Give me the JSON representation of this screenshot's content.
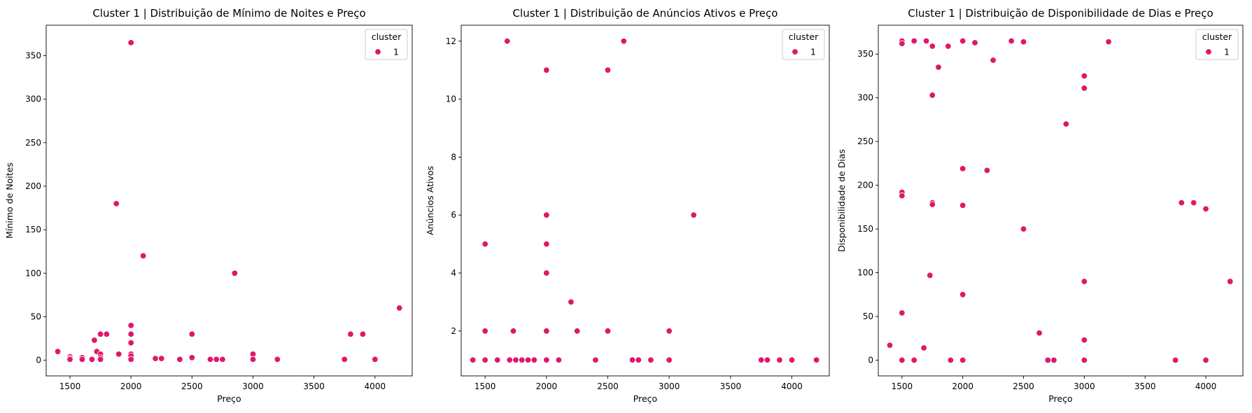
{
  "colors": {
    "point": "#e0176a",
    "point_edge": "#ffffff"
  },
  "chart_data": [
    {
      "type": "scatter",
      "title": "Cluster 1 | Distribuição de Mínimo de Noites e Preço",
      "xlabel": "Preço",
      "ylabel": "Mínimo de Noites",
      "xlim": [
        1305,
        4305
      ],
      "ylim": [
        -18,
        385
      ],
      "xticks": [
        1500,
        2000,
        2500,
        3000,
        3500,
        4000
      ],
      "yticks": [
        0,
        50,
        100,
        150,
        200,
        250,
        300,
        350
      ],
      "legend": {
        "title": "cluster",
        "entries": [
          "1"
        ],
        "position": "top-right"
      },
      "series": [
        {
          "name": "1",
          "points": [
            [
              1400,
              10
            ],
            [
              1500,
              4
            ],
            [
              1500,
              2
            ],
            [
              1500,
              1
            ],
            [
              1600,
              3
            ],
            [
              1600,
              1
            ],
            [
              1680,
              1
            ],
            [
              1700,
              23
            ],
            [
              1720,
              10
            ],
            [
              1750,
              30
            ],
            [
              1750,
              7
            ],
            [
              1750,
              3
            ],
            [
              1750,
              1
            ],
            [
              1800,
              30
            ],
            [
              1880,
              180
            ],
            [
              1900,
              7
            ],
            [
              2000,
              365
            ],
            [
              2000,
              40
            ],
            [
              2000,
              30
            ],
            [
              2000,
              20
            ],
            [
              2000,
              7
            ],
            [
              2000,
              5
            ],
            [
              2000,
              1
            ],
            [
              2100,
              120
            ],
            [
              2200,
              2
            ],
            [
              2250,
              2
            ],
            [
              2400,
              1
            ],
            [
              2500,
              30
            ],
            [
              2500,
              3
            ],
            [
              2650,
              1
            ],
            [
              2700,
              1
            ],
            [
              2750,
              1
            ],
            [
              2850,
              100
            ],
            [
              3000,
              7
            ],
            [
              3000,
              1
            ],
            [
              3200,
              1
            ],
            [
              3750,
              1
            ],
            [
              3800,
              30
            ],
            [
              3900,
              30
            ],
            [
              4000,
              1
            ],
            [
              4200,
              60
            ]
          ]
        }
      ]
    },
    {
      "type": "scatter",
      "title": "Cluster 1 | Distribuição de Anúncios Ativos e Preço",
      "xlabel": "Preço",
      "ylabel": "Anúncios Ativos",
      "xlim": [
        1305,
        4305
      ],
      "ylim": [
        0.45,
        12.55
      ],
      "xticks": [
        1500,
        2000,
        2500,
        3000,
        3500,
        4000
      ],
      "yticks": [
        2,
        4,
        6,
        8,
        10,
        12
      ],
      "legend": {
        "title": "cluster",
        "entries": [
          "1"
        ],
        "position": "top-right"
      },
      "series": [
        {
          "name": "1",
          "points": [
            [
              1400,
              1
            ],
            [
              1500,
              5
            ],
            [
              1500,
              2
            ],
            [
              1500,
              1
            ],
            [
              1600,
              1
            ],
            [
              1680,
              12
            ],
            [
              1700,
              1
            ],
            [
              1730,
              2
            ],
            [
              1750,
              1
            ],
            [
              1800,
              1
            ],
            [
              1850,
              1
            ],
            [
              1900,
              1
            ],
            [
              2000,
              11
            ],
            [
              2000,
              6
            ],
            [
              2000,
              5
            ],
            [
              2000,
              4
            ],
            [
              2000,
              2
            ],
            [
              2000,
              1
            ],
            [
              2100,
              1
            ],
            [
              2200,
              3
            ],
            [
              2250,
              2
            ],
            [
              2400,
              1
            ],
            [
              2500,
              11
            ],
            [
              2500,
              2
            ],
            [
              2630,
              12
            ],
            [
              2700,
              1
            ],
            [
              2750,
              1
            ],
            [
              2850,
              1
            ],
            [
              3000,
              2
            ],
            [
              3000,
              1
            ],
            [
              3200,
              6
            ],
            [
              3750,
              1
            ],
            [
              3800,
              1
            ],
            [
              3900,
              1
            ],
            [
              4000,
              1
            ],
            [
              4200,
              1
            ]
          ]
        }
      ]
    },
    {
      "type": "scatter",
      "title": "Cluster 1 | Distribuição de Disponibilidade de Dias e Preço",
      "xlabel": "Preço",
      "ylabel": "Disponibilidade de Dias",
      "xlim": [
        1305,
        4305
      ],
      "ylim": [
        -18,
        383
      ],
      "xticks": [
        1500,
        2000,
        2500,
        3000,
        3500,
        4000
      ],
      "yticks": [
        0,
        50,
        100,
        150,
        200,
        250,
        300,
        350
      ],
      "legend": {
        "title": "cluster",
        "entries": [
          "1"
        ],
        "position": "top-right"
      },
      "series": [
        {
          "name": "1",
          "points": [
            [
              1400,
              17
            ],
            [
              1500,
              365
            ],
            [
              1500,
              362
            ],
            [
              1500,
              192
            ],
            [
              1500,
              188
            ],
            [
              1500,
              54
            ],
            [
              1500,
              0
            ],
            [
              1600,
              365
            ],
            [
              1600,
              0
            ],
            [
              1680,
              14
            ],
            [
              1700,
              365
            ],
            [
              1730,
              97
            ],
            [
              1750,
              359
            ],
            [
              1750,
              303
            ],
            [
              1750,
              180
            ],
            [
              1750,
              178
            ],
            [
              1800,
              335
            ],
            [
              1880,
              359
            ],
            [
              1900,
              0
            ],
            [
              2000,
              365
            ],
            [
              2000,
              219
            ],
            [
              2000,
              177
            ],
            [
              2000,
              75
            ],
            [
              2000,
              0
            ],
            [
              2100,
              363
            ],
            [
              2200,
              217
            ],
            [
              2250,
              343
            ],
            [
              2400,
              365
            ],
            [
              2500,
              364
            ],
            [
              2500,
              150
            ],
            [
              2630,
              31
            ],
            [
              2700,
              0
            ],
            [
              2750,
              0
            ],
            [
              2850,
              270
            ],
            [
              3000,
              325
            ],
            [
              3000,
              311
            ],
            [
              3000,
              90
            ],
            [
              3000,
              23
            ],
            [
              3000,
              0
            ],
            [
              3200,
              364
            ],
            [
              3750,
              0
            ],
            [
              3800,
              180
            ],
            [
              3900,
              180
            ],
            [
              4000,
              173
            ],
            [
              4000,
              0
            ],
            [
              4200,
              90
            ]
          ]
        }
      ]
    }
  ]
}
